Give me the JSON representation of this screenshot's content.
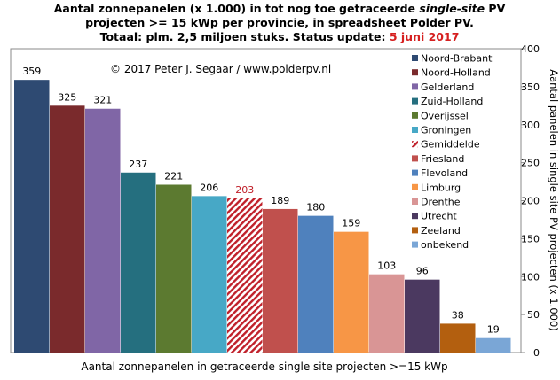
{
  "chart_data": {
    "type": "bar",
    "title_line1_a": "Aantal zonnepanelen (x 1.000) in tot nog toe getraceerde ",
    "title_line1_b": "single-site",
    "title_line1_c": " PV",
    "title_line2": "projecten >= 15 kWp per provincie, in spreadsheet Polder PV.",
    "title_line3_a": "Totaal: plm. 2,5 miljoen stuks. Status update: ",
    "title_line3_b": "5 juni 2017",
    "copyright": "© 2017 Peter J. Segaar / www.polderpv.nl",
    "xlabel": "Aantal zonnepanelen in getraceerde single site projecten >=15 kWp",
    "ylabel": "Aantal panelen in single site PV projecten (x 1.000)",
    "ylim": [
      0,
      400
    ],
    "yticks": [
      "0",
      "50",
      "100",
      "150",
      "200",
      "250",
      "300",
      "350",
      "400"
    ],
    "categories": [
      "Noord-Brabant",
      "Noord-Holland",
      "Gelderland",
      "Zuid-Holland",
      "Overijssel",
      "Groningen",
      "Gemiddelde",
      "Friesland",
      "Flevoland",
      "Limburg",
      "Drenthe",
      "Utrecht",
      "Zeeland",
      "onbekend"
    ],
    "values": [
      359,
      325,
      321,
      237,
      221,
      206,
      203,
      189,
      180,
      159,
      103,
      96,
      38,
      19
    ],
    "labels": [
      "359",
      "325",
      "321",
      "237",
      "221",
      "206",
      "203",
      "189",
      "180",
      "159",
      "103",
      "96",
      "38",
      "19"
    ],
    "colors": [
      "#2e4a72",
      "#7a2a2c",
      "#8066a6",
      "#256f7f",
      "#5c7a30",
      "#47a8c6",
      "#c0202a",
      "#c0504d",
      "#4f81bd",
      "#f79646",
      "#d99595",
      "#4b3960",
      "#b35f0f",
      "#7aa6d6"
    ],
    "hatched_category": "Gemiddelde",
    "avg_label_color": "#c0202a",
    "legend_placement": "top-right",
    "grid": false
  }
}
